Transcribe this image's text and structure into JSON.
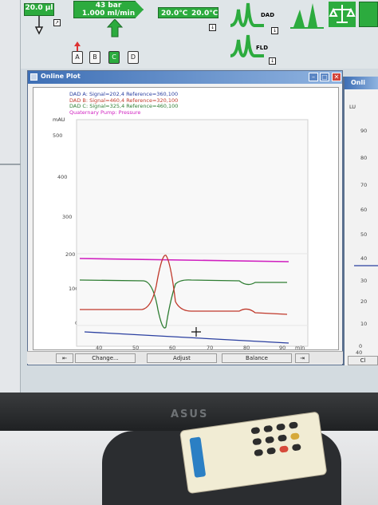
{
  "toolbar": {
    "injection_volume": "20.0 µl",
    "pump_pressure": "43 bar",
    "pump_flow": "1.000 ml/min",
    "column_temp_left": "20.0°C",
    "column_temp_right": "20.0°C",
    "dad_label": "DAD",
    "fld_label": "FLD",
    "solvents": [
      "A",
      "B",
      "C",
      "D"
    ],
    "active_solvent": "C"
  },
  "online_plot": {
    "title": "Online Plot",
    "legend": [
      {
        "text": "DAD A: Signal=202,4  Reference=360,100",
        "color": "#2a3fa0"
      },
      {
        "text": "DAD B: Signal=460,4  Reference=320,100",
        "color": "#c0392b"
      },
      {
        "text": "DAD C: Signal=325,4  Reference=460,100",
        "color": "#2e7d32"
      },
      {
        "text": "Quaternary Pump: Pressure",
        "color": "#d020c0"
      }
    ],
    "y_unit": "mAU",
    "y_ticks": [
      "500",
      "400",
      "300",
      "200",
      "100",
      "0"
    ],
    "x_ticks": [
      "40",
      "50",
      "60",
      "70",
      "80",
      "90"
    ],
    "x_unit": "min",
    "buttons": {
      "change": "Change...",
      "adjust": "Adjust",
      "balance": "Balance"
    }
  },
  "second_window": {
    "title": "Onli",
    "y_unit": "LU",
    "y_ticks": [
      "90",
      "80",
      "70",
      "60",
      "50",
      "40",
      "30",
      "20",
      "10",
      "0"
    ],
    "x_tick": "40",
    "button": "Cl"
  },
  "monitor_brand": "ASUS",
  "colors": {
    "accent_green": "#2cab3e",
    "titlebar_blue": "#3e6fb5",
    "signal_blue": "#2a3fa0",
    "signal_red": "#c0392b",
    "signal_green": "#2e7d32",
    "pressure_magenta": "#d020c0"
  }
}
